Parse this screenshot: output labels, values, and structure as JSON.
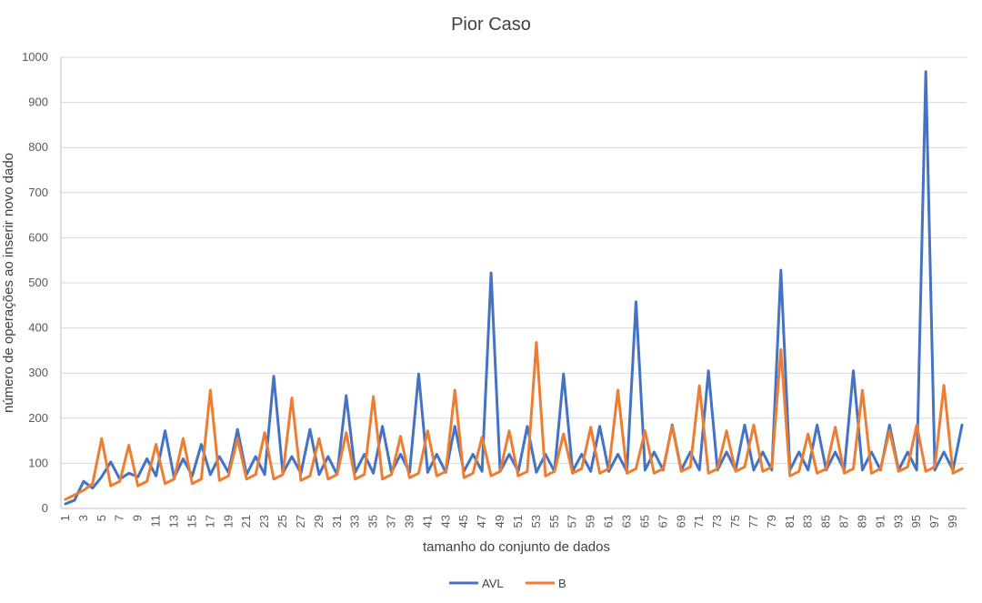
{
  "chart_data": {
    "type": "line",
    "title": "Pior Caso",
    "xlabel": "tamanho do conjunto de dados",
    "ylabel": "número de operações ao inserir novo dado",
    "ylim": [
      0,
      1000
    ],
    "yticks": [
      0,
      100,
      200,
      300,
      400,
      500,
      600,
      700,
      800,
      900,
      1000
    ],
    "x": [
      1,
      2,
      3,
      4,
      5,
      6,
      7,
      8,
      9,
      10,
      11,
      12,
      13,
      14,
      15,
      16,
      17,
      18,
      19,
      20,
      21,
      22,
      23,
      24,
      25,
      26,
      27,
      28,
      29,
      30,
      31,
      32,
      33,
      34,
      35,
      36,
      37,
      38,
      39,
      40,
      41,
      42,
      43,
      44,
      45,
      46,
      47,
      48,
      49,
      50,
      51,
      52,
      53,
      54,
      55,
      56,
      57,
      58,
      59,
      60,
      61,
      62,
      63,
      64,
      65,
      66,
      67,
      68,
      69,
      70,
      71,
      72,
      73,
      74,
      75,
      76,
      77,
      78,
      79,
      80,
      81,
      82,
      83,
      84,
      85,
      86,
      87,
      88,
      89,
      90,
      91,
      92,
      93,
      94,
      95,
      96,
      97,
      98,
      99,
      100
    ],
    "xticks_shown": [
      1,
      3,
      5,
      7,
      9,
      11,
      13,
      15,
      17,
      19,
      21,
      23,
      25,
      27,
      29,
      31,
      33,
      35,
      37,
      39,
      41,
      43,
      45,
      47,
      49,
      51,
      53,
      55,
      57,
      59,
      61,
      63,
      65,
      67,
      69,
      71,
      73,
      75,
      77,
      79,
      81,
      83,
      85,
      87,
      89,
      91,
      93,
      95,
      97,
      99
    ],
    "grid": true,
    "legend_position": "bottom",
    "series": [
      {
        "name": "AVL",
        "color": "#4472C4",
        "values": [
          10,
          18,
          60,
          45,
          70,
          103,
          65,
          78,
          70,
          110,
          72,
          172,
          68,
          110,
          72,
          142,
          75,
          115,
          80,
          175,
          75,
          115,
          75,
          293,
          78,
          115,
          78,
          175,
          75,
          115,
          75,
          250,
          80,
          120,
          78,
          182,
          80,
          120,
          80,
          298,
          80,
          120,
          80,
          182,
          82,
          120,
          82,
          522,
          82,
          120,
          82,
          182,
          80,
          120,
          82,
          298,
          82,
          120,
          82,
          182,
          82,
          120,
          82,
          458,
          85,
          125,
          85,
          185,
          85,
          125,
          85,
          305,
          85,
          125,
          85,
          185,
          85,
          125,
          85,
          528,
          85,
          125,
          85,
          185,
          85,
          125,
          85,
          305,
          85,
          125,
          85,
          185,
          85,
          125,
          85,
          968,
          85,
          125,
          85,
          185
        ]
      },
      {
        "name": "B",
        "color": "#ED7D31",
        "values": [
          20,
          30,
          40,
          55,
          155,
          50,
          60,
          140,
          50,
          60,
          142,
          55,
          65,
          155,
          55,
          65,
          262,
          62,
          72,
          155,
          65,
          75,
          168,
          65,
          75,
          245,
          62,
          72,
          155,
          65,
          75,
          168,
          65,
          75,
          248,
          65,
          75,
          160,
          68,
          78,
          172,
          72,
          82,
          262,
          68,
          78,
          158,
          72,
          82,
          172,
          72,
          82,
          368,
          72,
          82,
          165,
          78,
          88,
          180,
          78,
          88,
          262,
          78,
          88,
          172,
          78,
          88,
          182,
          82,
          92,
          272,
          78,
          88,
          172,
          82,
          92,
          185,
          82,
          92,
          352,
          72,
          82,
          165,
          78,
          88,
          180,
          78,
          88,
          262,
          78,
          88,
          172,
          82,
          92,
          185,
          82,
          92,
          273,
          78,
          88
        ]
      }
    ]
  }
}
